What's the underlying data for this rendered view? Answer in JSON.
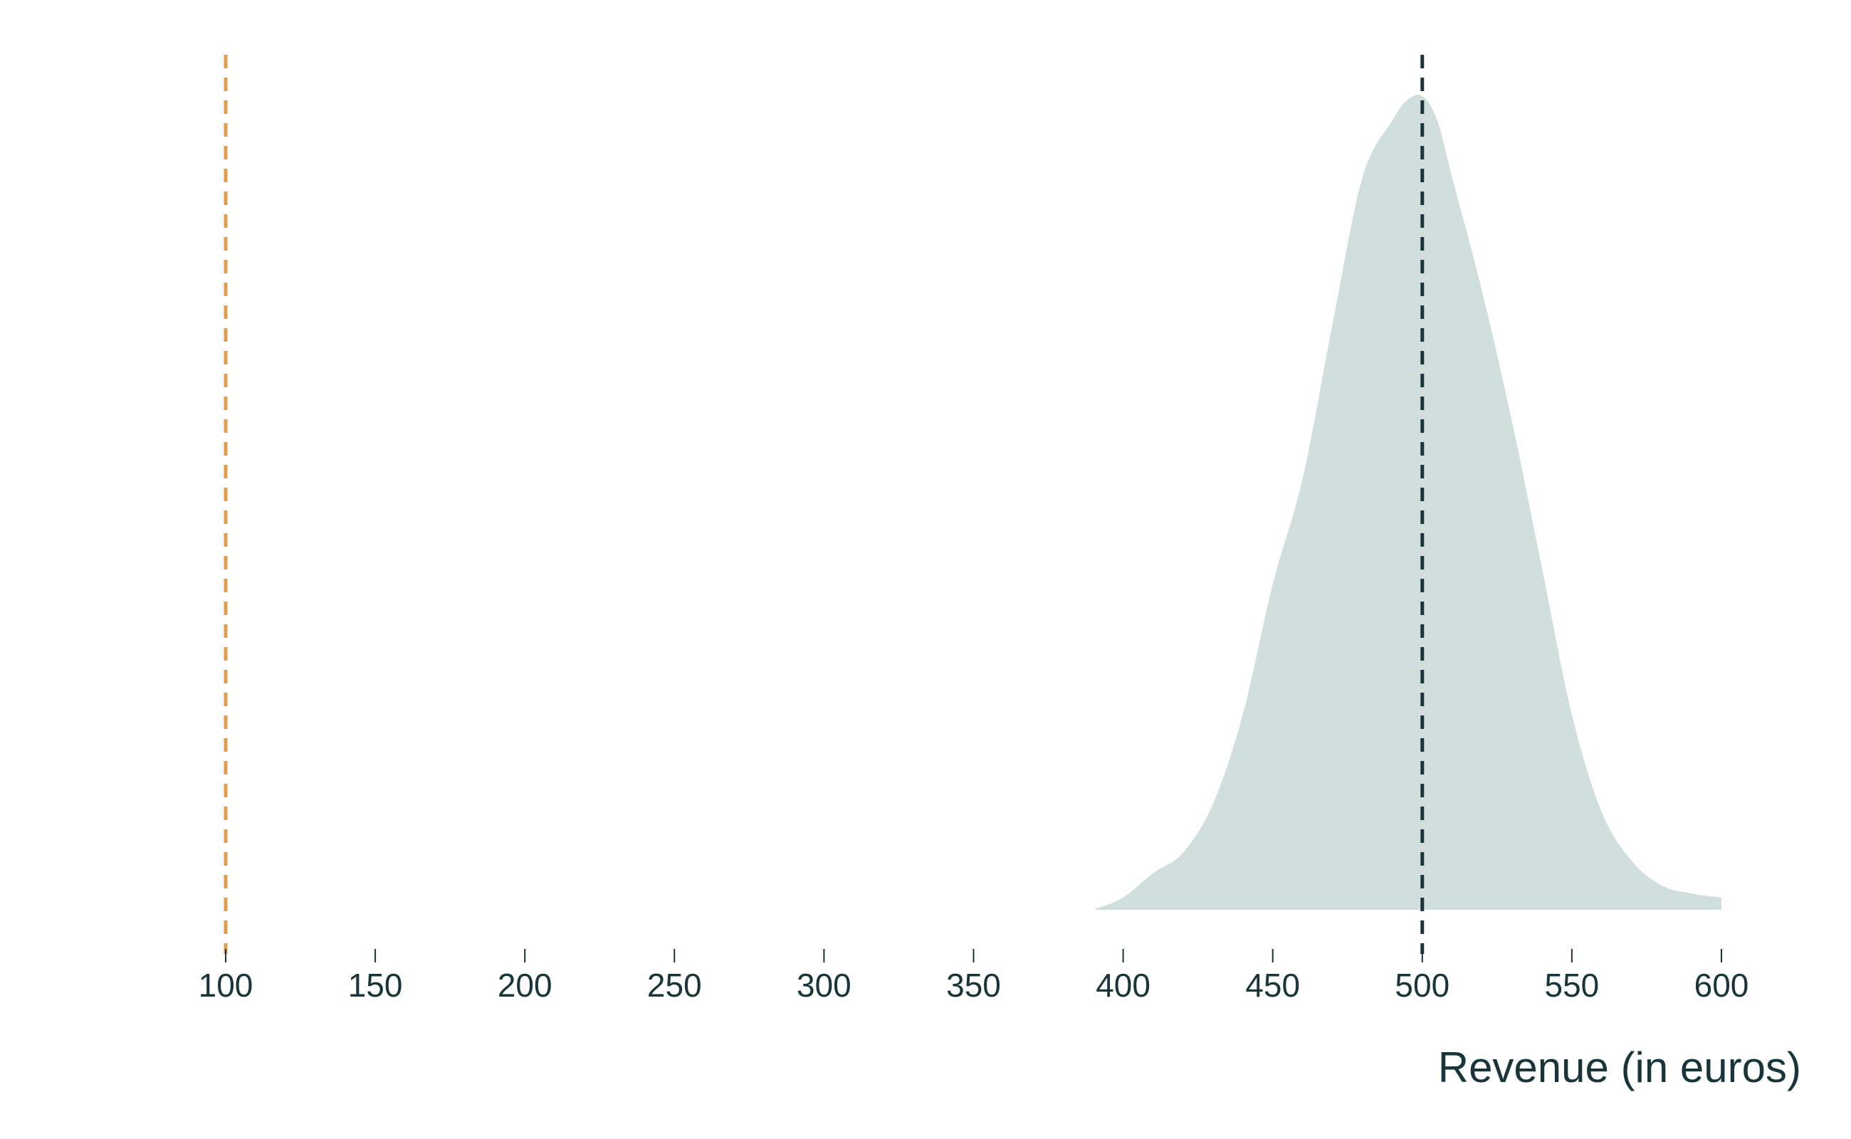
{
  "chart_data": {
    "type": "area",
    "title": "",
    "xlabel": "Revenue (in euros)",
    "ylabel": "",
    "xlim": [
      100,
      600
    ],
    "ylim": [
      0,
      1
    ],
    "grid": false,
    "xticks": [
      100,
      150,
      200,
      250,
      300,
      350,
      400,
      450,
      500,
      550,
      600
    ],
    "series": [
      {
        "x": [
          390,
          400,
          410,
          420,
          430,
          440,
          450,
          460,
          470,
          480,
          490,
          495,
          500,
          505,
          510,
          520,
          530,
          540,
          550,
          560,
          570,
          580,
          590,
          600
        ],
        "y": [
          0.0,
          0.015,
          0.045,
          0.07,
          0.13,
          0.24,
          0.4,
          0.53,
          0.72,
          0.9,
          0.97,
          0.995,
          1.0,
          0.97,
          0.9,
          0.76,
          0.6,
          0.42,
          0.24,
          0.12,
          0.06,
          0.03,
          0.02,
          0.015
        ]
      }
    ],
    "reference_lines": [
      {
        "x": 100
      },
      {
        "x": 500
      }
    ],
    "colors": {
      "area": "#d0dfde",
      "reference_line_1": "#e59a45",
      "reference_line_2": "#18363a",
      "text": "#18363a",
      "axis": "#18363a"
    }
  }
}
